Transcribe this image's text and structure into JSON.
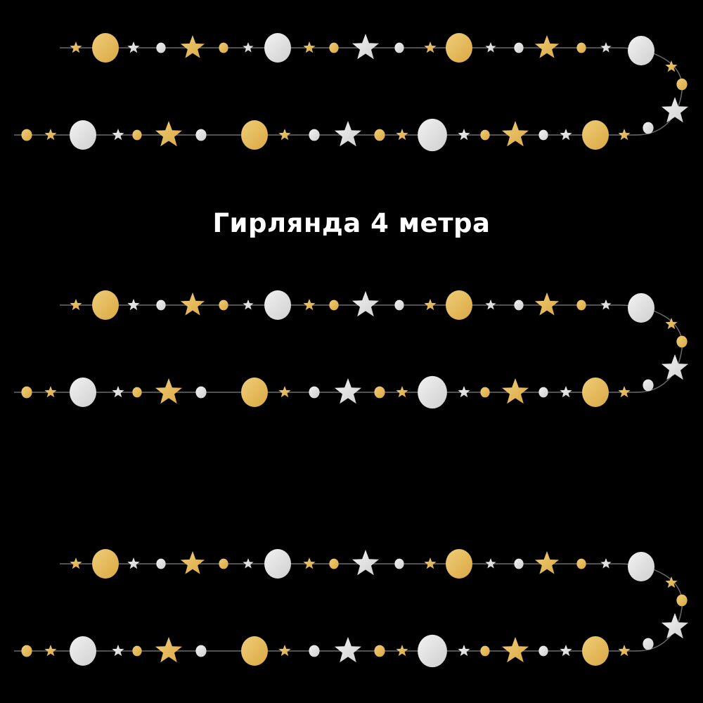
{
  "caption": "Гирлянда 4 метра",
  "colors": {
    "background": "#000000",
    "gold": "#d9a843",
    "gold_light": "#f0cd78",
    "silver": "#cfcfcf",
    "silver_light": "#f2f2f2",
    "string": "#6a6a6a"
  },
  "garland_count": 3,
  "ornament_types": [
    "star-icon",
    "circle-icon"
  ]
}
